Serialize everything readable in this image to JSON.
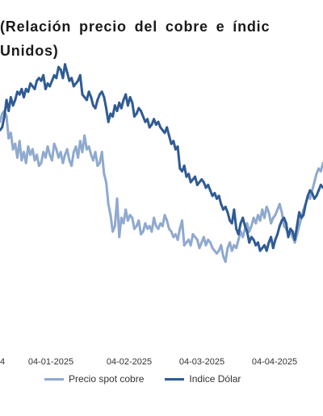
{
  "chart_data": {
    "type": "line",
    "title_line1": "(Relación precio del cobre e índic",
    "title_line2": "Unidos)",
    "x_tick_labels": [
      "4",
      "04-01-2025",
      "04-02-2025",
      "04-03-2025",
      "04-04-2025"
    ],
    "ylim": [
      0,
      100
    ],
    "grid": false,
    "legend_position": "bottom",
    "x": [
      0,
      1,
      2,
      3,
      4,
      5,
      6,
      7,
      8,
      9,
      10,
      11,
      12,
      13,
      14,
      15,
      16,
      17,
      18,
      19,
      20,
      21,
      22,
      23,
      24,
      25,
      26,
      27,
      28,
      29,
      30,
      31,
      32,
      33,
      34,
      35,
      36,
      37,
      38,
      39,
      40,
      41,
      42,
      43,
      44,
      45,
      46,
      47,
      48,
      49,
      50,
      51,
      52,
      53,
      54,
      55,
      56,
      57,
      58,
      59,
      60,
      61,
      62,
      63,
      64,
      65,
      66,
      67,
      68,
      69,
      70,
      71,
      72,
      73,
      74,
      75,
      76,
      77,
      78,
      79,
      80,
      81,
      82,
      83,
      84,
      85,
      86,
      87,
      88,
      89,
      90,
      91,
      92,
      93,
      94,
      95,
      96,
      97,
      98,
      99,
      100,
      101,
      102,
      103,
      104,
      105,
      106,
      107,
      108,
      109,
      110,
      111,
      112,
      113,
      114,
      115,
      116,
      117,
      118,
      119,
      120,
      121,
      122,
      123,
      124,
      125,
      126,
      127,
      128,
      129,
      130,
      131,
      132,
      133,
      134,
      135,
      136,
      137,
      138,
      139,
      140,
      141,
      142,
      143,
      144,
      145,
      146,
      147,
      148,
      149
    ],
    "series": [
      {
        "name": "Precio spot cobre",
        "color": "#8fa9cf",
        "values": [
          82,
          85,
          86,
          84,
          76,
          78,
          72,
          74,
          69,
          75,
          68,
          71,
          67,
          73,
          70,
          72,
          68,
          70,
          66,
          67,
          71,
          69,
          73,
          70,
          68,
          74,
          72,
          69,
          71,
          67,
          70,
          72,
          68,
          66,
          71,
          73,
          69,
          75,
          71,
          77,
          72,
          73,
          70,
          68,
          71,
          66,
          67,
          71,
          63,
          60,
          52,
          48,
          42,
          44,
          54,
          40,
          47,
          45,
          50,
          46,
          48,
          47,
          43,
          44,
          46,
          41,
          42,
          45,
          43,
          44,
          42,
          47,
          44,
          43,
          45,
          44,
          48,
          46,
          43,
          42,
          40,
          41,
          39,
          43,
          46,
          37,
          38,
          39,
          37,
          41,
          40,
          39,
          36,
          38,
          40,
          37,
          39,
          38,
          36,
          35,
          34,
          35,
          37,
          33,
          31,
          36,
          38,
          35,
          37,
          36,
          39,
          42,
          40,
          43,
          45,
          42,
          44,
          47,
          45,
          48,
          46,
          50,
          47,
          51,
          49,
          45,
          47,
          48,
          50,
          52,
          49,
          44,
          43,
          41,
          42,
          40,
          38,
          41,
          44,
          47,
          50,
          52,
          55,
          54,
          57,
          60,
          63,
          65,
          64,
          67
        ]
      },
      {
        "name": "Indice Dólar",
        "color": "#2f5b94",
        "values": [
          79,
          80,
          84,
          90,
          86,
          91,
          88,
          90,
          93,
          92,
          94,
          91,
          94,
          93,
          96,
          95,
          94,
          97,
          98,
          97,
          99,
          94,
          96,
          95,
          97,
          99,
          98,
          102,
          101,
          98,
          103,
          100,
          97,
          98,
          95,
          96,
          97,
          99,
          92,
          91,
          90,
          93,
          91,
          88,
          87,
          90,
          92,
          93,
          91,
          87,
          82,
          85,
          84,
          88,
          86,
          89,
          87,
          90,
          92,
          88,
          91,
          89,
          84,
          85,
          87,
          86,
          84,
          82,
          83,
          80,
          81,
          83,
          81,
          82,
          80,
          79,
          78,
          80,
          77,
          74,
          75,
          72,
          73,
          65,
          64,
          66,
          62,
          63,
          60,
          61,
          62,
          59,
          60,
          61,
          60,
          58,
          59,
          57,
          55,
          56,
          54,
          55,
          52,
          50,
          51,
          49,
          46,
          45,
          50,
          43,
          41,
          45,
          47,
          44,
          42,
          38,
          40,
          39,
          37,
          38,
          35,
          36,
          37,
          35,
          38,
          40,
          36,
          39,
          41,
          44,
          46,
          47,
          45,
          40,
          43,
          42,
          39,
          44,
          49,
          47,
          48,
          52,
          55,
          57,
          56,
          54,
          55,
          57,
          59,
          58
        ]
      }
    ]
  }
}
